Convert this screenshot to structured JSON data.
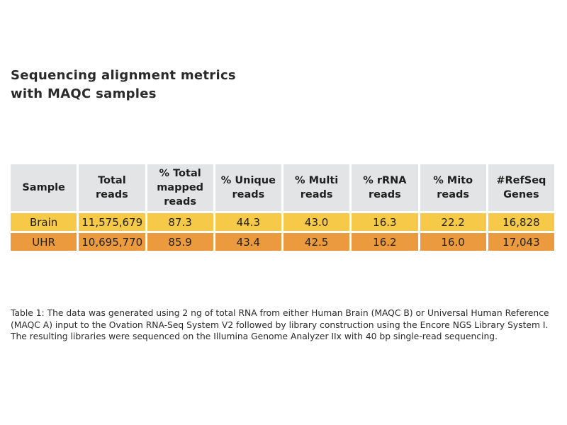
{
  "title": {
    "line1": "Sequencing alignment metrics",
    "line2": "with MAQC samples"
  },
  "table": {
    "headers": [
      [
        "Sample"
      ],
      [
        "Total",
        "reads"
      ],
      [
        "% Total",
        "mapped",
        "reads"
      ],
      [
        "% Unique",
        "reads"
      ],
      [
        "% Multi",
        "reads"
      ],
      [
        "% rRNA",
        "reads"
      ],
      [
        "% Mito",
        "reads"
      ],
      [
        "#RefSeq",
        "Genes"
      ]
    ],
    "rows": [
      {
        "color": "#f6c948",
        "cells": [
          "Brain",
          "11,575,679",
          "87.3",
          "44.3",
          "43.0",
          "16.3",
          "22.2",
          "16,828"
        ]
      },
      {
        "color": "#eb9a3e",
        "cells": [
          "UHR",
          "10,695,770",
          "85.9",
          "43.4",
          "42.5",
          "16.2",
          "16.0",
          "17,043"
        ]
      }
    ]
  },
  "caption": "Table 1: The data was generated using 2 ng of total RNA from either Human Brain (MAQC B) or Universal Human Reference (MAQC A) input to the Ovation RNA-Seq System V2 followed by library construction using the Encore NGS Library System I. The resulting libraries were sequenced on the Illumina Genome Analyzer IIx with 40 bp single-read sequencing."
}
